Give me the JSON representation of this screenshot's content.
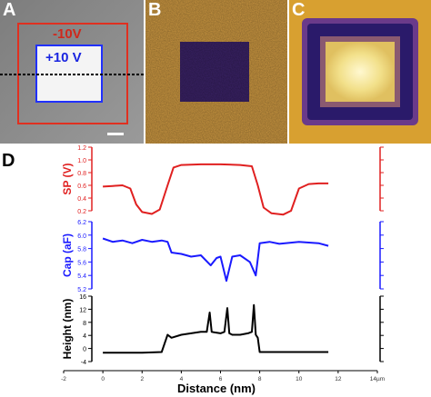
{
  "panels": {
    "a": {
      "letter": "A",
      "outer_label": "-10V",
      "inner_label": "+10 V"
    },
    "b": {
      "letter": "B"
    },
    "c": {
      "letter": "C"
    },
    "d": {
      "letter": "D"
    }
  },
  "colors": {
    "sp": "#e02020",
    "cap": "#1a1aff",
    "height": "#000000",
    "outer_box": "#e03020",
    "inner_box": "#2030ff"
  },
  "chart_data": {
    "type": "line",
    "xlabel": "Distance (nm)",
    "xlim": [
      -2,
      14
    ],
    "x_ticks": [
      "-2",
      "0",
      "2",
      "4",
      "6",
      "8",
      "10",
      "12",
      "14µm"
    ],
    "subplots": [
      {
        "name": "sp",
        "ylabel": "SP (V)",
        "ylim": [
          0.2,
          1.2
        ],
        "y_ticks": [
          "0.2",
          "0.4",
          "0.6",
          "0.8",
          "1.0",
          "1.2"
        ],
        "series": [
          {
            "x": [
              0,
              0.5,
              1.0,
              1.4,
              1.7,
              2.0,
              2.5,
              2.9,
              3.3,
              3.6,
              4.0,
              5,
              6,
              7,
              7.6,
              7.9,
              8.2,
              8.6,
              9.2,
              9.6,
              10.0,
              10.5,
              11,
              11.5
            ],
            "y": [
              0.58,
              0.59,
              0.6,
              0.55,
              0.3,
              0.18,
              0.15,
              0.22,
              0.6,
              0.88,
              0.92,
              0.93,
              0.93,
              0.92,
              0.9,
              0.6,
              0.25,
              0.16,
              0.14,
              0.2,
              0.55,
              0.62,
              0.63,
              0.63
            ]
          }
        ]
      },
      {
        "name": "cap",
        "ylabel": "Cap (aF)",
        "ylim": [
          5.2,
          6.2
        ],
        "y_ticks": [
          "5.2",
          "5.4",
          "5.6",
          "5.8",
          "6.0",
          "6.2"
        ],
        "series": [
          {
            "x": [
              0,
              0.5,
              1,
              1.5,
              2,
              2.5,
              3,
              3.3,
              3.5,
              4,
              4.5,
              5,
              5.5,
              5.8,
              6.0,
              6.3,
              6.6,
              7,
              7.5,
              7.8,
              8.0,
              8.5,
              9,
              10,
              11,
              11.5
            ],
            "y": [
              5.95,
              5.9,
              5.92,
              5.88,
              5.93,
              5.9,
              5.92,
              5.9,
              5.74,
              5.72,
              5.68,
              5.7,
              5.55,
              5.66,
              5.68,
              5.32,
              5.68,
              5.7,
              5.6,
              5.4,
              5.88,
              5.9,
              5.87,
              5.9,
              5.88,
              5.84
            ]
          }
        ]
      },
      {
        "name": "height",
        "ylabel": "Height (nm)",
        "ylim": [
          -4,
          18
        ],
        "y_ticks": [
          "-4",
          "0",
          "4",
          "8",
          "12",
          "16"
        ],
        "series": [
          {
            "x": [
              0,
              1,
              2,
              3,
              3.3,
              3.5,
              4,
              4.5,
              5,
              5.3,
              5.45,
              5.55,
              5.7,
              6.0,
              6.2,
              6.35,
              6.45,
              6.6,
              7.0,
              7.4,
              7.6,
              7.7,
              7.8,
              7.9,
              8.0,
              9,
              10,
              11,
              11.5
            ],
            "y": [
              -1,
              -1,
              -1,
              -0.8,
              5,
              4,
              5,
              5.5,
              6,
              6,
              12.5,
              6,
              5.8,
              5.5,
              6,
              14,
              5.5,
              5,
              5,
              5.5,
              6,
              15,
              5,
              4,
              -0.8,
              -0.8,
              -0.8,
              -0.8,
              -0.8
            ]
          }
        ]
      }
    ]
  }
}
